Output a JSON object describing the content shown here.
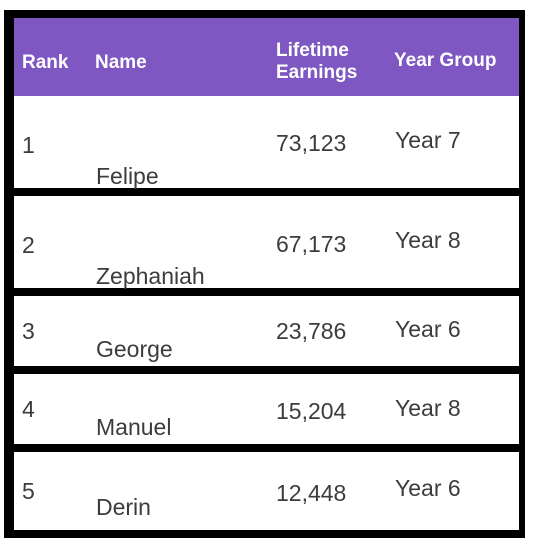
{
  "table": {
    "headers": {
      "rank": "Rank",
      "name": "Name",
      "earnings_line1": "Lifetime",
      "earnings_line2": "Earnings",
      "year_group": "Year Group"
    },
    "rows": [
      {
        "rank": "1",
        "name": "Felipe",
        "earnings": "73,123",
        "year_group": "Year 7"
      },
      {
        "rank": "2",
        "name": "Zephaniah",
        "earnings": "67,173",
        "year_group": "Year 8"
      },
      {
        "rank": "3",
        "name": "George",
        "earnings": "23,786",
        "year_group": "Year 6"
      },
      {
        "rank": "4",
        "name": "Manuel",
        "earnings": "15,204",
        "year_group": "Year 8"
      },
      {
        "rank": "5",
        "name": "Derin",
        "earnings": "12,448",
        "year_group": "Year 6"
      }
    ]
  },
  "colors": {
    "header_bg": "#7e57c2",
    "header_text": "#ffffff",
    "border": "#000000",
    "cell_text": "#3c3c3c"
  }
}
